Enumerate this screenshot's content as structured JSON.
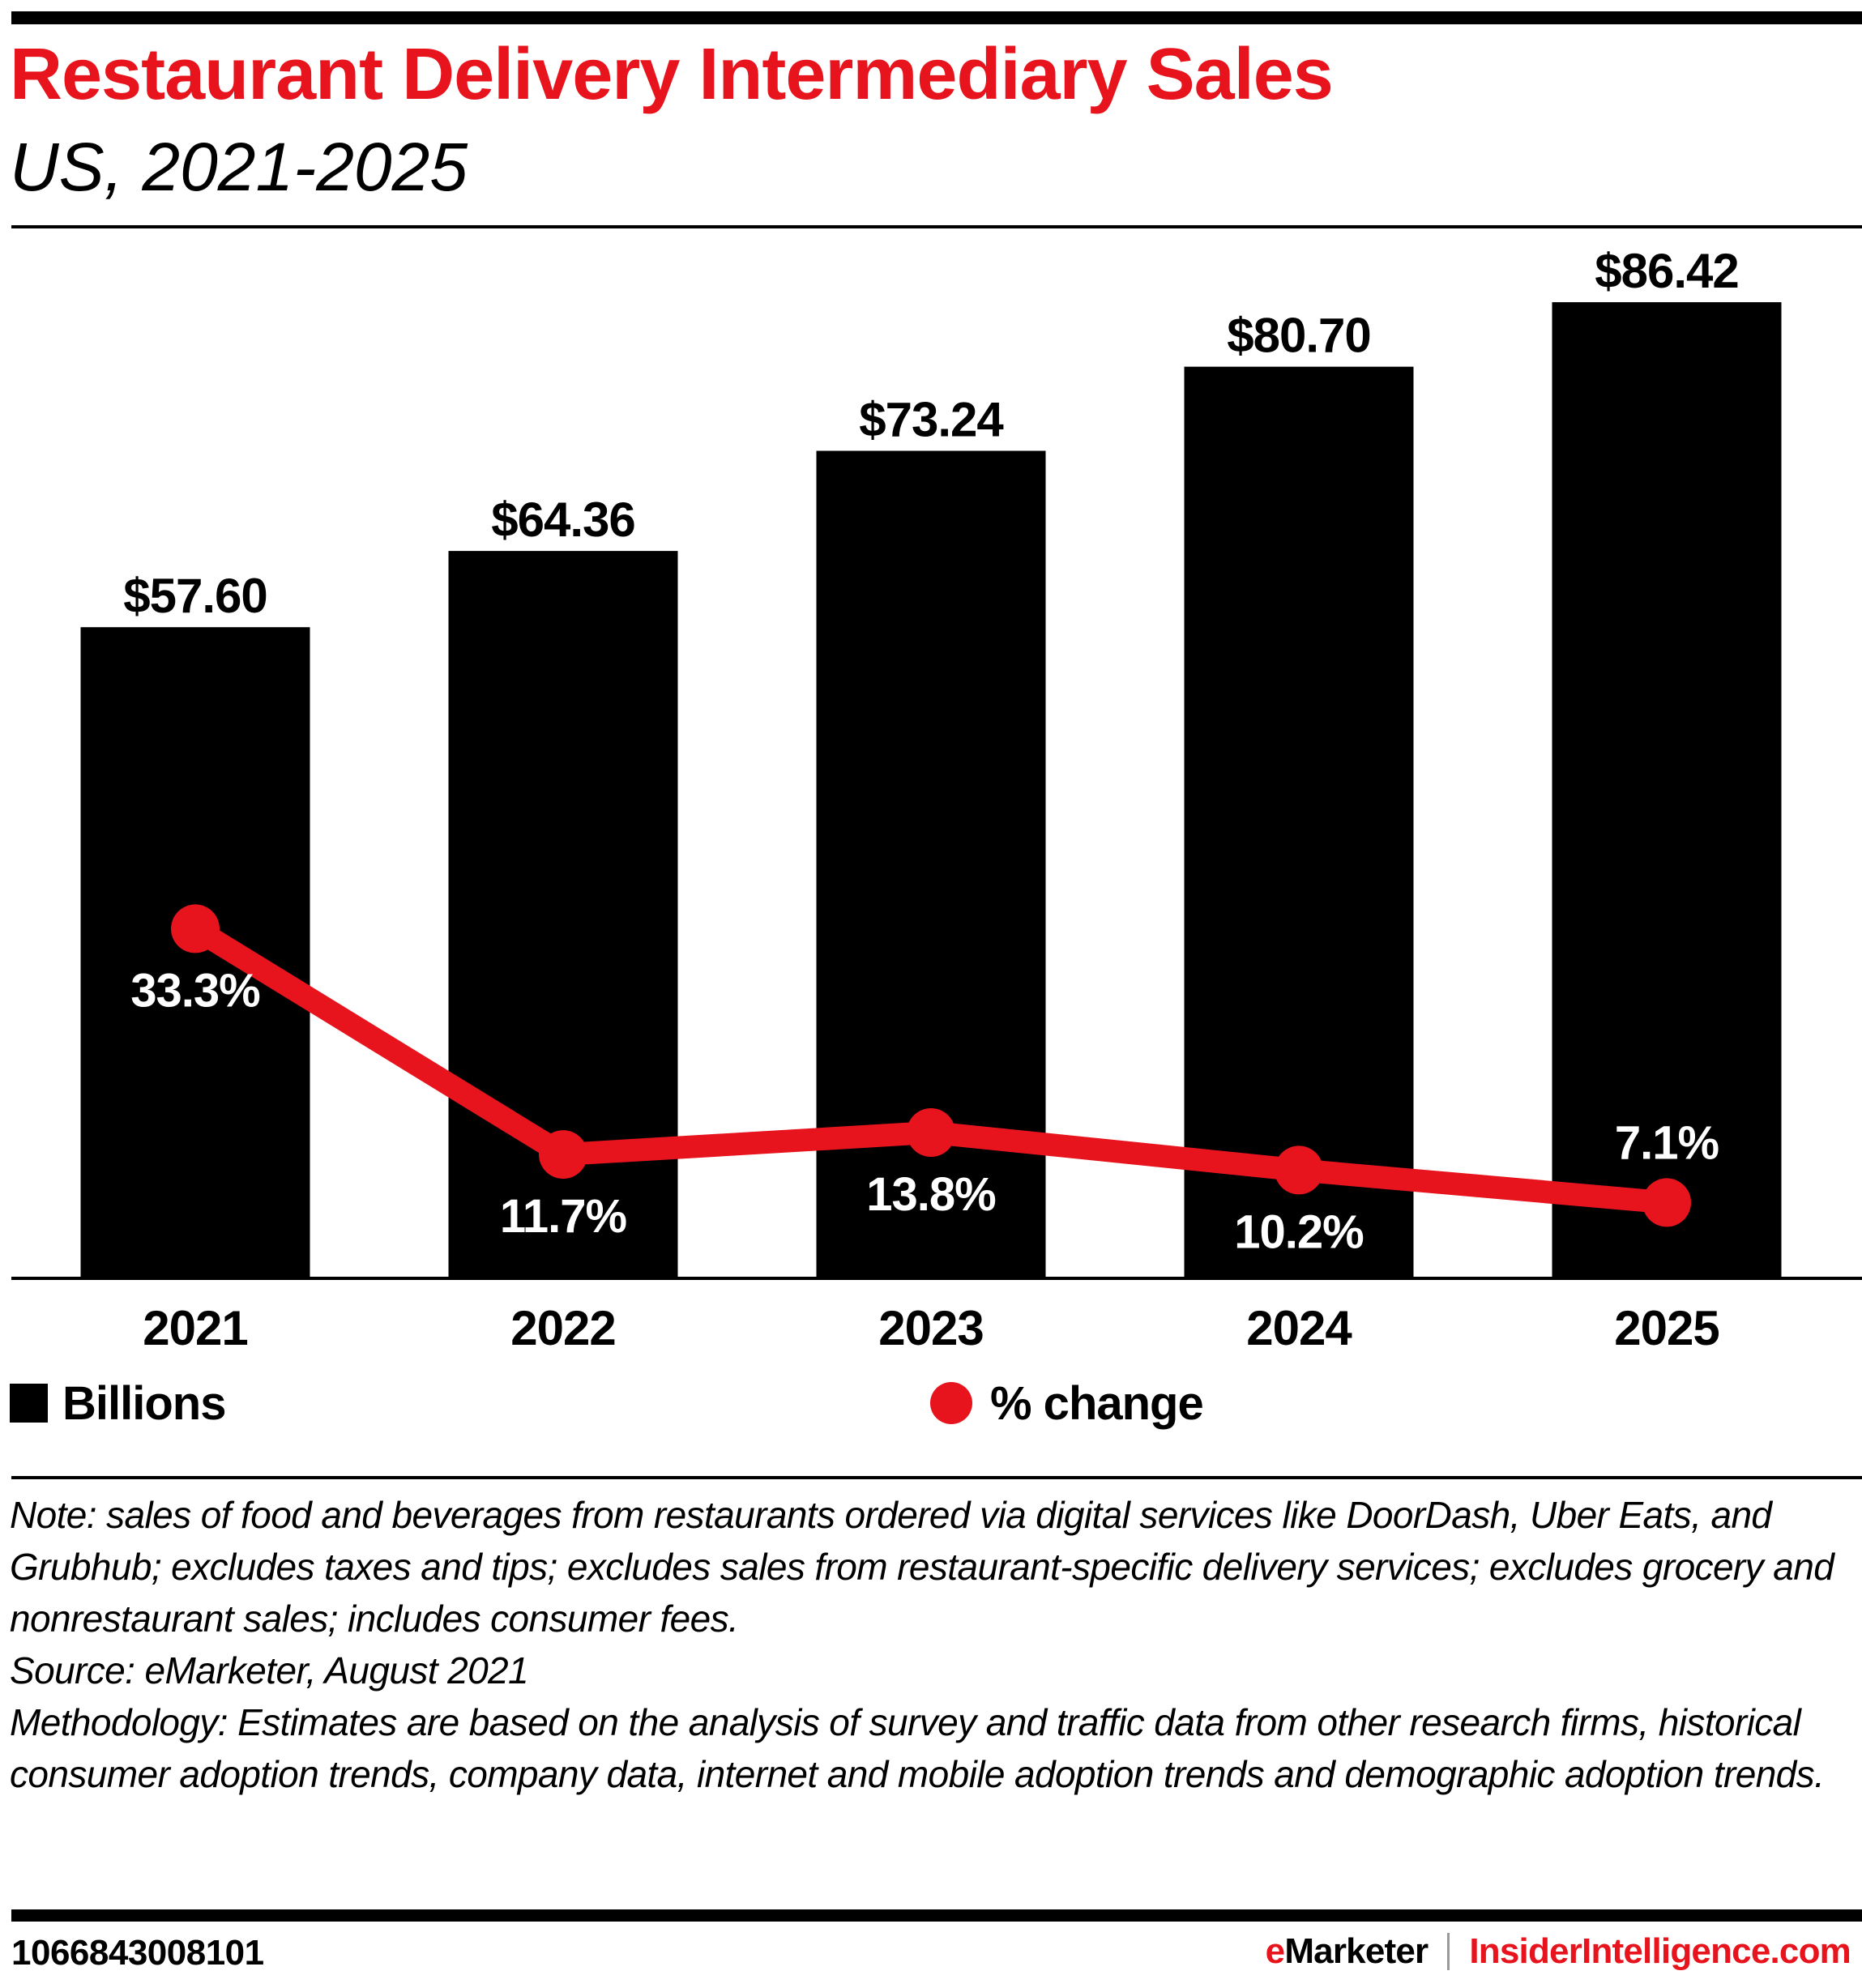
{
  "header": {
    "title": "Restaurant Delivery Intermediary Sales",
    "subtitle": "US, 2021-2025"
  },
  "colors": {
    "accent": "#E8141D",
    "bars": "#000000",
    "line": "#E8141D",
    "pct_label": "#FFFFFF"
  },
  "chart_data": {
    "type": "bar",
    "title": "Restaurant Delivery Intermediary Sales",
    "subtitle": "US, 2021-2025",
    "xlabel": "",
    "ylabel": "",
    "categories": [
      "2021",
      "2022",
      "2023",
      "2024",
      "2025"
    ],
    "series": [
      {
        "name": "Billions",
        "type": "bar",
        "values": [
          57.6,
          64.36,
          73.24,
          80.7,
          86.42
        ],
        "labels": [
          "$57.60",
          "$64.36",
          "$73.24",
          "$80.70",
          "$86.42"
        ],
        "color": "#000000"
      },
      {
        "name": "% change",
        "type": "line",
        "values": [
          33.3,
          11.7,
          13.8,
          10.2,
          7.1
        ],
        "labels": [
          "33.3%",
          "11.7%",
          "13.8%",
          "10.2%",
          "7.1%"
        ],
        "label_position": [
          "below",
          "below",
          "below",
          "below",
          "above"
        ],
        "color": "#E8141D"
      }
    ],
    "ylim": [
      0,
      86.42
    ],
    "grid": false,
    "legend": "bottom",
    "legend_entries": [
      "Billions",
      "% change"
    ]
  },
  "notes": {
    "note": "Note: sales of food and beverages from restaurants ordered via digital services like DoorDash, Uber Eats, and Grubhub; excludes taxes and tips; excludes sales from restaurant-specific delivery services; excludes grocery and nonrestaurant sales; includes consumer fees.",
    "source": "Source: eMarketer, August 2021",
    "methodology": "Methodology: Estimates are based on the analysis of survey and traffic data from other research firms, historical consumer adoption trends, company data, internet and mobile adoption trends and demographic adoption trends."
  },
  "footer": {
    "chart_id": "1066843008101",
    "brand_e": "e",
    "brand_rest": "Marketer",
    "site": "InsiderIntelligence.com"
  }
}
